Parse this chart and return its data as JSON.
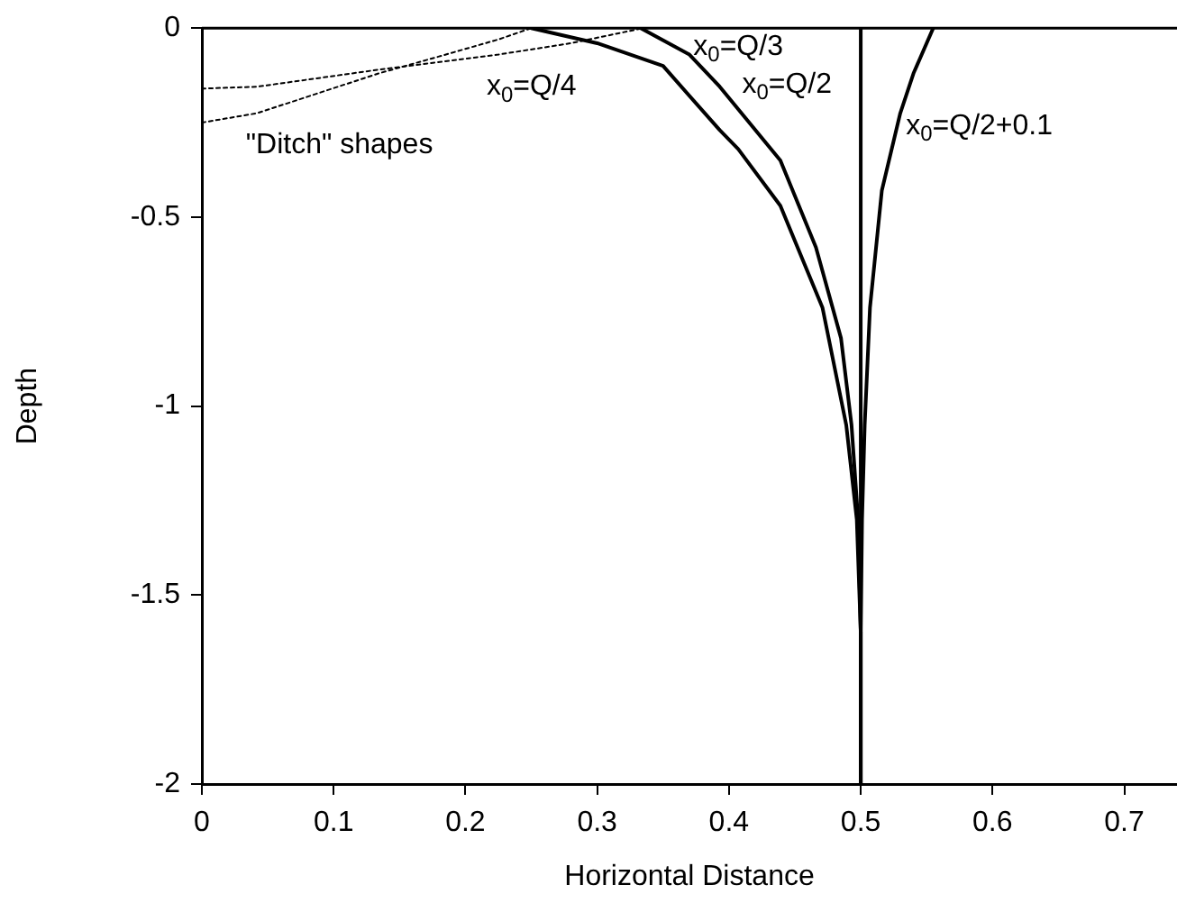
{
  "chart_data": {
    "type": "line",
    "xlabel": "Horizontal Distance",
    "ylabel": "Depth",
    "xlim": [
      0,
      0.74
    ],
    "xticks": [
      0,
      0.1,
      0.2,
      0.3,
      0.4,
      0.5,
      0.6,
      0.7
    ],
    "ylim": [
      -2,
      0
    ],
    "yticks": [
      -2,
      -1.5,
      -1,
      -0.5,
      0
    ],
    "grid": false,
    "legend": false,
    "marker": "none",
    "series": [
      {
        "color": "#000000",
        "line_style": "solid",
        "x": [
          0.25,
          0.3,
          0.35,
          0.393,
          0.407,
          0.439,
          0.471,
          0.489,
          0.497,
          0.5,
          0.5
        ],
        "values": [
          0,
          -0.04,
          -0.1,
          -0.27,
          -0.32,
          -0.47,
          -0.74,
          -1.05,
          -1.3,
          -1.6,
          -2
        ]
      },
      {
        "color": "#000000",
        "line_style": "solid",
        "x": [
          0.333,
          0.37,
          0.393,
          0.439,
          0.466,
          0.485,
          0.493,
          0.498,
          0.5,
          0.5
        ],
        "values": [
          0,
          -0.07,
          -0.155,
          -0.35,
          -0.58,
          -0.82,
          -1.05,
          -1.3,
          -1.6,
          -2
        ]
      },
      {
        "color": "#000000",
        "line_style": "solid",
        "x": [
          0.5,
          0.5
        ],
        "values": [
          0,
          -2
        ]
      },
      {
        "color": "#000000",
        "line_style": "solid",
        "x": [
          0.555,
          0.54,
          0.53,
          0.516,
          0.507,
          0.503,
          0.501,
          0.5
        ],
        "values": [
          0,
          -0.12,
          -0.225,
          -0.43,
          -0.74,
          -1.05,
          -1.3,
          -1.6
        ]
      },
      {
        "color": "#000000",
        "line_style": "dotted",
        "x": [
          0,
          0.042,
          0.134,
          0.225,
          0.28,
          0.335
        ],
        "values": [
          -0.16,
          -0.155,
          -0.11,
          -0.07,
          -0.04,
          0
        ]
      },
      {
        "color": "#000000",
        "line_style": "dotted",
        "x": [
          0,
          0.042,
          0.134,
          0.18,
          0.225,
          0.25
        ],
        "values": [
          -0.25,
          -0.225,
          -0.12,
          -0.075,
          -0.03,
          0
        ]
      }
    ],
    "annotations": [
      "x$_{0}$=Q/4",
      "x$_{0}$=Q/3",
      "x$_{0}$=Q/2",
      "x$_{0}$=Q/2+0.1",
      "\"Ditch\" shapes"
    ]
  }
}
